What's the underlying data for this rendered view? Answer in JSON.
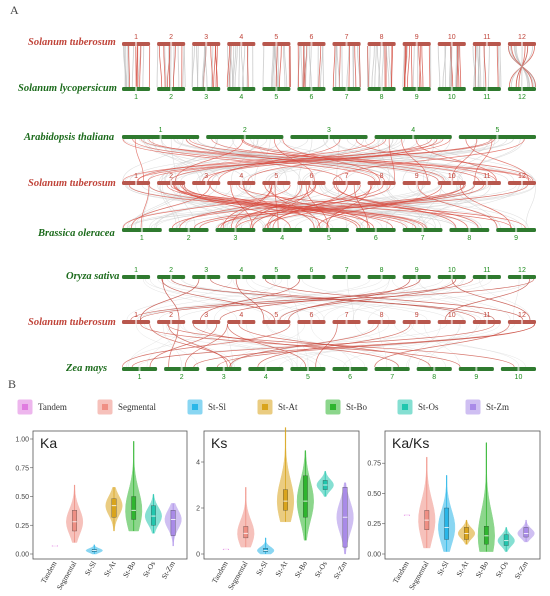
{
  "panel_a_label": "A",
  "panel_b_label": "B",
  "synteny": {
    "labels": {
      "st1": "Solanum tuberosum",
      "sl": "Solanum lycopersicum",
      "at": "Arabidopsis thaliana",
      "st2": "Solanum tuberosum",
      "bo": "Brassica oleracea",
      "os": "Oryza sativa",
      "st3": "Solanum tuberosum",
      "zm": "Zea mays"
    },
    "rows": {
      "st1": [
        "1",
        "2",
        "3",
        "4",
        "5",
        "6",
        "7",
        "8",
        "9",
        "10",
        "11",
        "12"
      ],
      "sl": [
        "1",
        "2",
        "3",
        "4",
        "5",
        "6",
        "7",
        "8",
        "9",
        "10",
        "11",
        "12"
      ],
      "at": [
        "1",
        "2",
        "3",
        "4",
        "5"
      ],
      "st2": [
        "1",
        "2",
        "3",
        "4",
        "5",
        "6",
        "7",
        "8",
        "9",
        "10",
        "11",
        "12"
      ],
      "bo": [
        "1",
        "2",
        "3",
        "4",
        "5",
        "6",
        "7",
        "8",
        "9"
      ],
      "os": [
        "1",
        "2",
        "3",
        "4",
        "5",
        "6",
        "7",
        "8",
        "9",
        "10",
        "11",
        "12"
      ],
      "st3": [
        "1",
        "2",
        "3",
        "4",
        "5",
        "6",
        "7",
        "8",
        "9",
        "10",
        "11",
        "12"
      ],
      "zm": [
        "1",
        "2",
        "3",
        "4",
        "5",
        "6",
        "7",
        "8",
        "9",
        "10"
      ]
    },
    "colors": {
      "red": "#c0443a",
      "green": "#1c6b1c",
      "bar_red": "#b8574d",
      "bar_green": "#2f7a2f"
    }
  },
  "legend": [
    {
      "label": "Tandem",
      "color": "#e07be0"
    },
    {
      "label": "Segmental",
      "color": "#ef8f84"
    },
    {
      "label": "St-Sl",
      "color": "#29b6e8"
    },
    {
      "label": "St-At",
      "color": "#d9a41c"
    },
    {
      "label": "St-Bo",
      "color": "#2fb52f"
    },
    {
      "label": "St-Os",
      "color": "#22c6ae"
    },
    {
      "label": "St-Zm",
      "color": "#a98be8"
    }
  ],
  "chart_data": [
    {
      "type": "violin",
      "title": "Ka",
      "categories": [
        "Tandem",
        "Segmental",
        "St-Sl",
        "St-At",
        "St-Bo",
        "St-Os",
        "St-Zm"
      ],
      "yticks": [
        "0.00",
        "0.25",
        "0.50",
        "0.75",
        "1.00"
      ],
      "ylim": [
        0,
        1.0
      ],
      "series": [
        {
          "min": 0.07,
          "q1": 0.07,
          "median": 0.07,
          "q3": 0.07,
          "max": 0.07
        },
        {
          "min": 0.1,
          "q1": 0.2,
          "median": 0.28,
          "q3": 0.38,
          "max": 0.6
        },
        {
          "min": 0.0,
          "q1": 0.02,
          "median": 0.03,
          "q3": 0.04,
          "max": 0.08
        },
        {
          "min": 0.2,
          "q1": 0.32,
          "median": 0.42,
          "q3": 0.48,
          "max": 0.58
        },
        {
          "min": 0.2,
          "q1": 0.3,
          "median": 0.38,
          "q3": 0.5,
          "max": 0.98
        },
        {
          "min": 0.18,
          "q1": 0.25,
          "median": 0.33,
          "q3": 0.42,
          "max": 0.52
        },
        {
          "min": 0.07,
          "q1": 0.16,
          "median": 0.3,
          "q3": 0.38,
          "max": 0.44
        }
      ]
    },
    {
      "type": "violin",
      "title": "Ks",
      "categories": [
        "Tandem",
        "Segmental",
        "St-Sl",
        "St-At",
        "St-Bo",
        "St-Os",
        "St-Zm"
      ],
      "yticks": [
        "0",
        "2",
        "4"
      ],
      "ylim": [
        0,
        5.0
      ],
      "series": [
        {
          "min": 0.2,
          "q1": 0.2,
          "median": 0.2,
          "q3": 0.2,
          "max": 0.2
        },
        {
          "min": 0.3,
          "q1": 0.7,
          "median": 0.9,
          "q3": 1.2,
          "max": 2.9
        },
        {
          "min": 0.0,
          "q1": 0.1,
          "median": 0.15,
          "q3": 0.25,
          "max": 0.7
        },
        {
          "min": 1.4,
          "q1": 1.9,
          "median": 2.3,
          "q3": 2.8,
          "max": 5.5
        },
        {
          "min": 0.6,
          "q1": 1.6,
          "median": 2.3,
          "q3": 3.4,
          "max": 4.5
        },
        {
          "min": 2.5,
          "q1": 2.8,
          "median": 3.0,
          "q3": 3.2,
          "max": 3.6
        },
        {
          "min": 0.0,
          "q1": 0.3,
          "median": 1.6,
          "q3": 2.9,
          "max": 3.1
        }
      ]
    },
    {
      "type": "violin",
      "title": "Ka/Ks",
      "categories": [
        "Tandem",
        "Segmental",
        "St-Sl",
        "St-At",
        "St-Bo",
        "St-Os",
        "St-Zm"
      ],
      "yticks": [
        "0.00",
        "0.25",
        "0.50",
        "0.75"
      ],
      "ylim": [
        0,
        0.95
      ],
      "series": [
        {
          "min": 0.32,
          "q1": 0.32,
          "median": 0.32,
          "q3": 0.32,
          "max": 0.32
        },
        {
          "min": 0.05,
          "q1": 0.2,
          "median": 0.28,
          "q3": 0.36,
          "max": 0.8
        },
        {
          "min": 0.02,
          "q1": 0.12,
          "median": 0.22,
          "q3": 0.38,
          "max": 0.65
        },
        {
          "min": 0.08,
          "q1": 0.12,
          "median": 0.17,
          "q3": 0.22,
          "max": 0.28
        },
        {
          "min": 0.02,
          "q1": 0.08,
          "median": 0.15,
          "q3": 0.23,
          "max": 0.92
        },
        {
          "min": 0.02,
          "q1": 0.07,
          "median": 0.11,
          "q3": 0.16,
          "max": 0.22
        },
        {
          "min": 0.1,
          "q1": 0.14,
          "median": 0.17,
          "q3": 0.22,
          "max": 0.28
        }
      ]
    }
  ]
}
